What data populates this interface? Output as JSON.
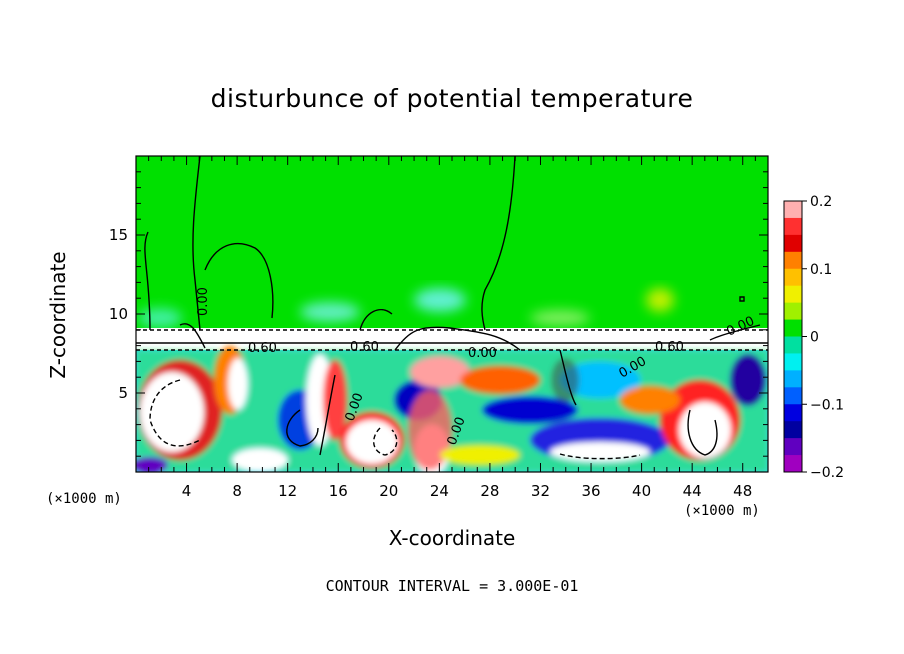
{
  "title": "disturbunce of potential temperature",
  "footer": "CONTOUR INTERVAL = 3.000E-01",
  "chart_data": {
    "type": "heatmap",
    "title": "disturbunce of potential temperature",
    "xlabel": "X-coordinate",
    "ylabel": "Z-coordinate",
    "x_unit_label": "(×1000 m)",
    "x_ticks": [
      "4",
      "8",
      "12",
      "16",
      "20",
      "24",
      "28",
      "32",
      "36",
      "40",
      "44",
      "48"
    ],
    "y_ticks": [
      "5",
      "10",
      "15"
    ],
    "xlim": [
      0,
      50
    ],
    "ylim": [
      0,
      20
    ],
    "colorbar": {
      "range": [
        -0.2,
        0.2
      ],
      "tick_labels": [
        "0.2",
        "0.1",
        "0",
        "−0.1",
        "−0.2"
      ],
      "colors": [
        "#ffb0b0",
        "#ff3030",
        "#e00000",
        "#ff8000",
        "#ffc000",
        "#f0f000",
        "#a0f000",
        "#00e000",
        "#00e0a0",
        "#00f0f0",
        "#00b0ff",
        "#0060ff",
        "#0000e0",
        "#0000a0",
        "#6000c0",
        "#a000c0"
      ]
    },
    "contour_interval": 0.3,
    "contour_labels": [
      "0.00",
      "0.60",
      "0.60",
      "0.00",
      "0.00",
      "0.00",
      "0.00",
      "0.60",
      "0.00"
    ],
    "legend_position": "right",
    "grid": false
  }
}
